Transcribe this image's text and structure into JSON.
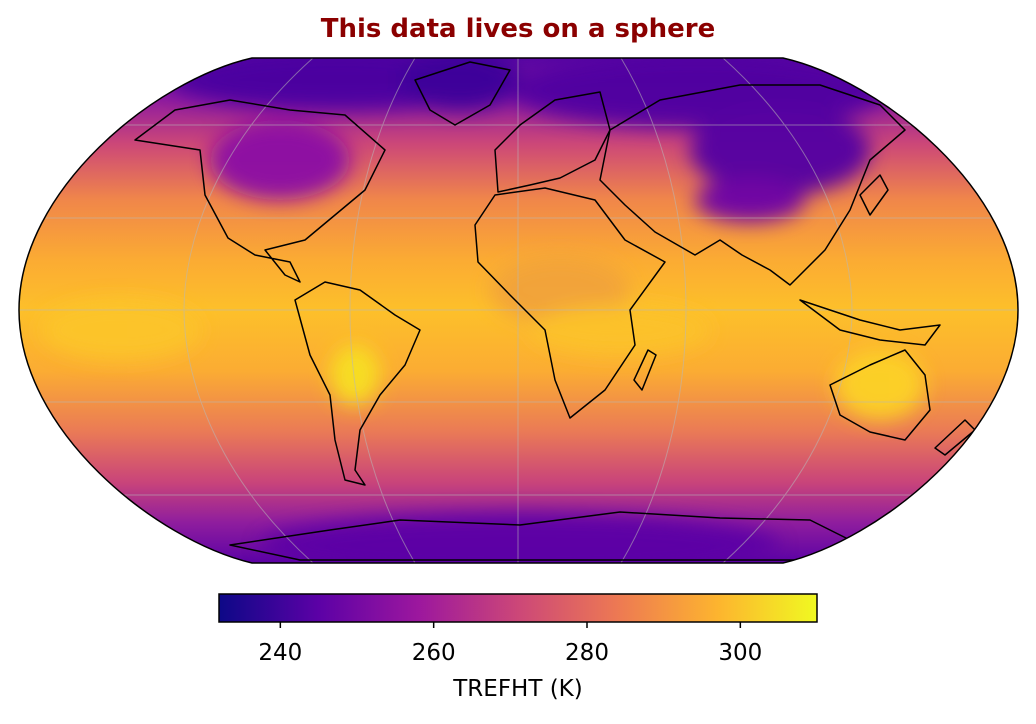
{
  "title": "This data lives on a sphere",
  "title_color": "#8b0000",
  "map": {
    "projection": "robinson",
    "variable": "TREFHT",
    "units": "K",
    "colormap": "plasma",
    "gridlines": true,
    "coastlines": true
  },
  "colorbar": {
    "label": "TREFHT (K)",
    "orientation": "horizontal",
    "placement": "bottom",
    "vmin": 232,
    "vmax": 310,
    "ticks": [
      {
        "value": 240,
        "label": "240"
      },
      {
        "value": 260,
        "label": "260"
      },
      {
        "value": 280,
        "label": "280"
      },
      {
        "value": 300,
        "label": "300"
      }
    ],
    "stops": [
      "#0d0887",
      "#5c01a6",
      "#9c179e",
      "#cc4778",
      "#ed7953",
      "#fdb42f",
      "#f0f921"
    ]
  }
}
